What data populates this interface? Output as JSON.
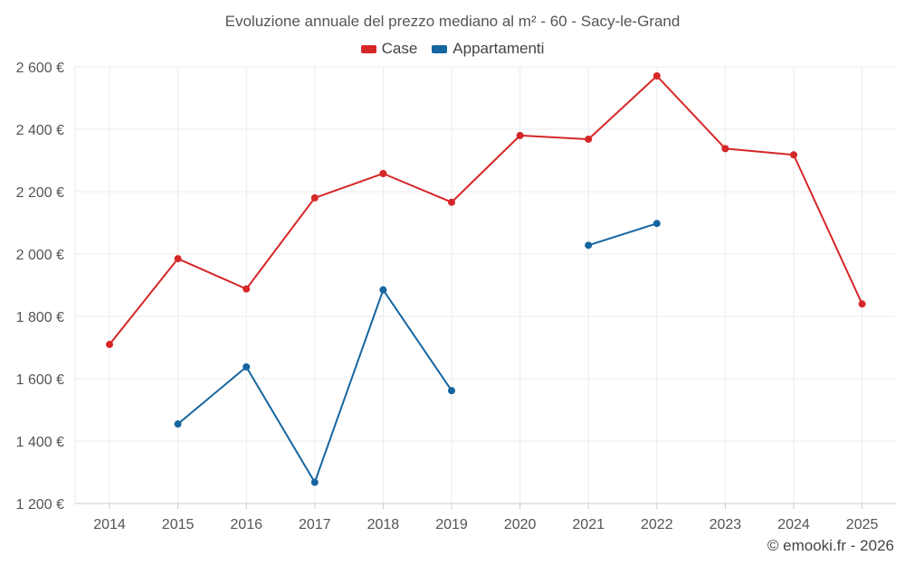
{
  "chart_data": {
    "type": "line",
    "title": "Evoluzione annuale del prezzo mediano al m² - 60 - Sacy-le-Grand",
    "categories": [
      "2014",
      "2015",
      "2016",
      "2017",
      "2018",
      "2019",
      "2020",
      "2021",
      "2022",
      "2023",
      "2024",
      "2025"
    ],
    "yticks": [
      1200,
      1400,
      1600,
      1800,
      2000,
      2200,
      2400,
      2600
    ],
    "ytick_labels": [
      "1 200 €",
      "1 400 €",
      "1 600 €",
      "1 800 €",
      "2 000 €",
      "2 200 €",
      "2 400 €",
      "2 600 €"
    ],
    "ylim": [
      1200,
      2600
    ],
    "grid": true,
    "legend_position": "top-center",
    "series": [
      {
        "name": "Case",
        "color": "#d62728",
        "values": [
          1710,
          1985,
          1888,
          2180,
          2258,
          2166,
          2380,
          2368,
          2571,
          2338,
          2318,
          1840
        ]
      },
      {
        "name": "Appartamenti",
        "color": "#1565a0",
        "values": [
          null,
          1455,
          1638,
          1268,
          1885,
          1562,
          null,
          2028,
          2098,
          null,
          null,
          null
        ]
      }
    ]
  },
  "credit": "© emooki.fr - 2026"
}
